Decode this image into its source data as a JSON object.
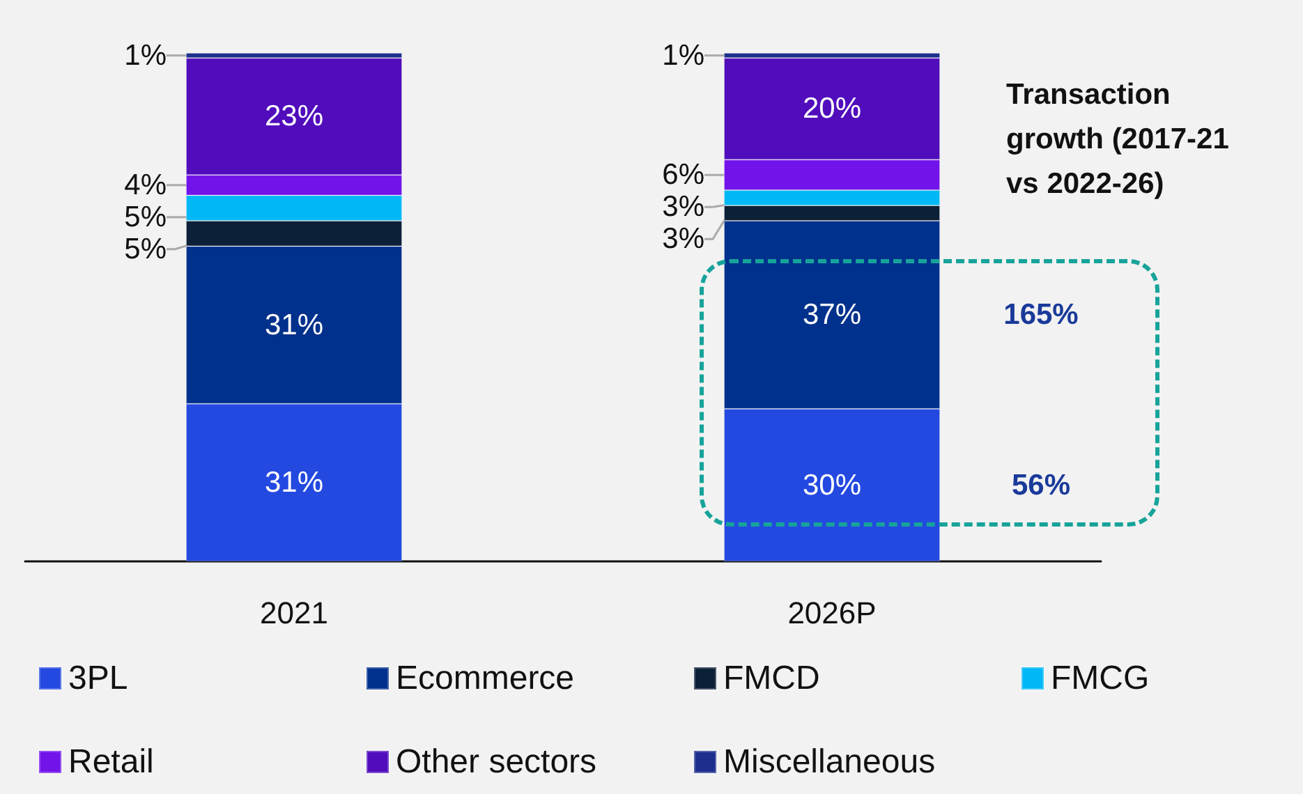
{
  "chart_data": {
    "type": "bar",
    "stacked": true,
    "legend": "bottom",
    "categories": [
      "2021",
      "2026P"
    ],
    "series": [
      {
        "name": "3PL",
        "color": "#2349e0",
        "values": [
          31,
          30
        ],
        "value_labels": [
          "31%",
          "30%"
        ]
      },
      {
        "name": "Ecommerce",
        "color": "#00318c",
        "values": [
          31,
          37
        ],
        "value_labels": [
          "31%",
          "37%"
        ]
      },
      {
        "name": "FMCD",
        "color": "#0c2138",
        "values": [
          5,
          3
        ],
        "value_labels": [
          "5%",
          "3%"
        ]
      },
      {
        "name": "FMCG",
        "color": "#00b8f5",
        "values": [
          5,
          3
        ],
        "value_labels": [
          "5%",
          "3%"
        ]
      },
      {
        "name": "Retail",
        "color": "#7213ea",
        "values": [
          4,
          6
        ],
        "value_labels": [
          "4%",
          "6%"
        ]
      },
      {
        "name": "Other sectors",
        "color": "#510dbc",
        "values": [
          23,
          20
        ],
        "value_labels": [
          "23%",
          "20%"
        ]
      },
      {
        "name": "Miscellaneous",
        "color": "#1e2e8c",
        "values": [
          1,
          1
        ],
        "value_labels": [
          "1%",
          "1%"
        ]
      }
    ],
    "annotations": [
      "Transaction growth (2017-21 vs 2022-26)",
      "165%",
      "56%"
    ]
  }
}
